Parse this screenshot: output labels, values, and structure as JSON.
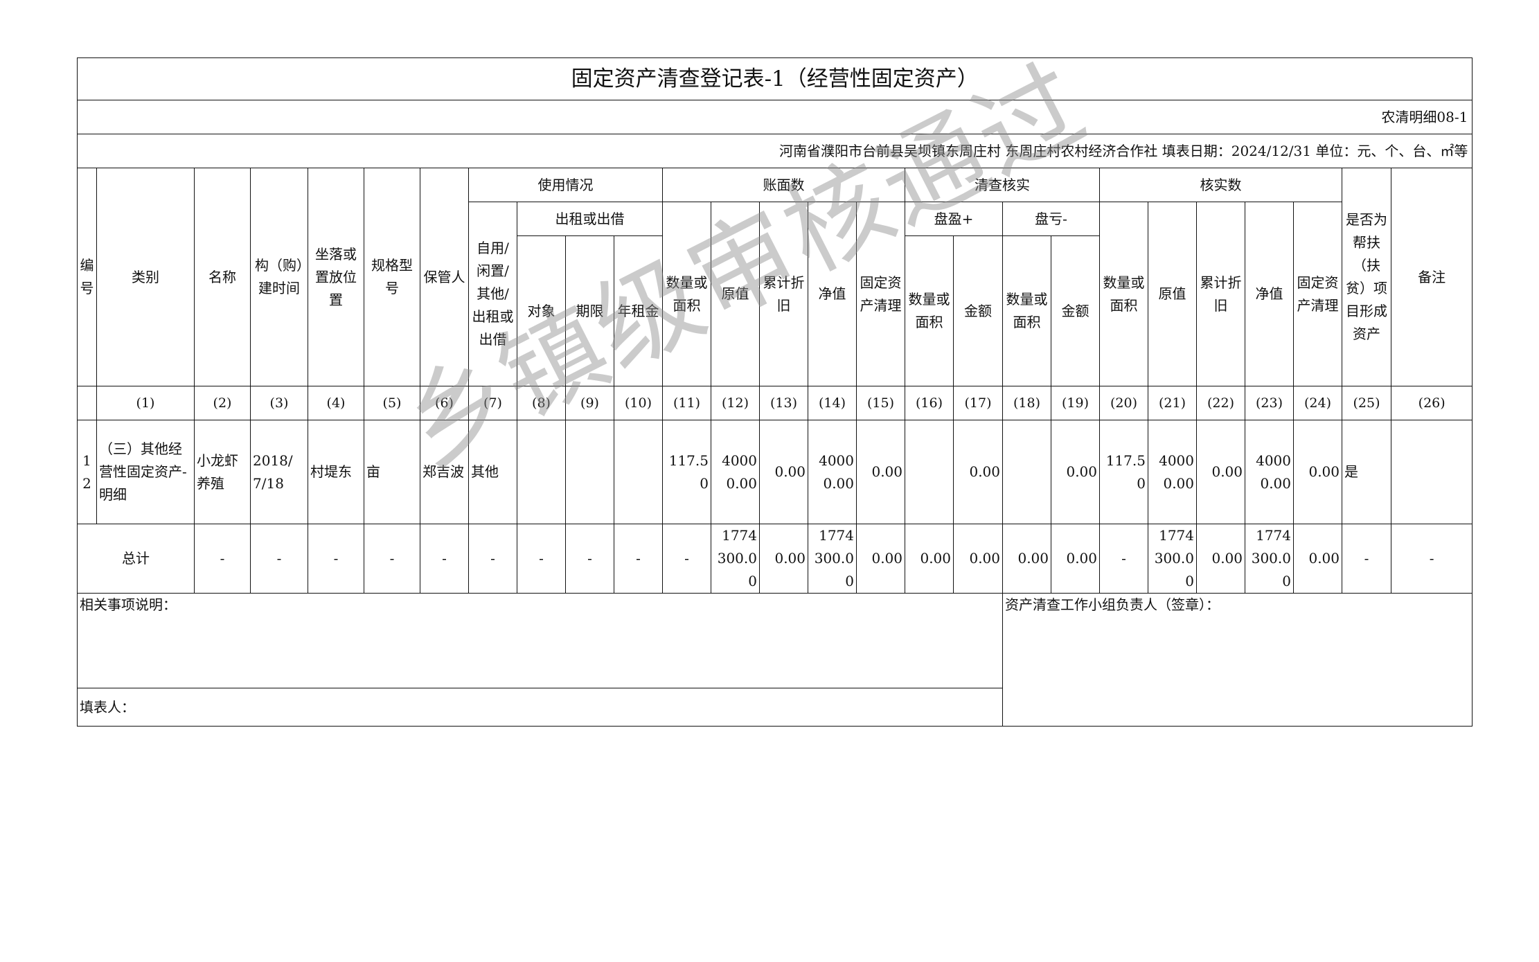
{
  "title": "固定资产清查登记表-1（经营性固定资产）",
  "form_code": "农清明细08-1",
  "info_line": "河南省濮阳市台前县吴坝镇东周庄村  东周庄村农村经济合作社  填表日期：2024/12/31  单位：元、个、台、㎡等",
  "headers": {
    "no": "编号",
    "category": "类别",
    "name": "名称",
    "build_time": "构（购）建时间",
    "location": "坐落或置放位置",
    "spec": "规格型号",
    "keeper": "保管人",
    "usage": "使用情况",
    "usage_status": "自用/闲置/其他/出租或出借",
    "lease": "出租或出借",
    "lease_target": "对象",
    "lease_term": "期限",
    "annual_rent": "年租金",
    "book": "账面数",
    "qty_area": "数量或面积",
    "original_value": "原值",
    "accum_depr": "累计折旧",
    "net_value": "净值",
    "fa_clearing": "固定资产清理",
    "verify": "清查核实",
    "surplus": "盘盈+",
    "loss": "盘亏-",
    "amount": "金额",
    "verified": "核实数",
    "poverty": "是否为帮扶（扶贫）项目形成资产",
    "remarks": "备注"
  },
  "column_numbers": [
    "",
    "(1)",
    "(2)",
    "(3)",
    "(4)",
    "(5)",
    "(6)",
    "(7)",
    "(8)",
    "(9)",
    "(10)",
    "(11)",
    "(12)",
    "(13)",
    "(14)",
    "(15)",
    "(16)",
    "(17)",
    "(18)",
    "(19)",
    "(20)",
    "(21)",
    "(22)",
    "(23)",
    "(24)",
    "(25)",
    "(26)"
  ],
  "rows": [
    [
      "12",
      "（三）其他经营性固定资产-明细",
      "小龙虾养殖",
      "2018/7/18",
      "村堤东",
      "亩",
      "郑吉波",
      "其他",
      "",
      "",
      "",
      "117.50",
      "40000.00",
      "0.00",
      "40000.00",
      "0.00",
      "",
      "0.00",
      "",
      "0.00",
      "117.50",
      "40000.00",
      "0.00",
      "40000.00",
      "0.00",
      "是",
      ""
    ]
  ],
  "total": [
    "总计",
    "-",
    "-",
    "-",
    "-",
    "-",
    "-",
    "-",
    "-",
    "-",
    "-",
    "1774300.00",
    "0.00",
    "1774300.00",
    "0.00",
    "0.00",
    "0.00",
    "0.00",
    "0.00",
    "-",
    "1774300.00",
    "0.00",
    "1774300.00",
    "0.00",
    "-",
    "-"
  ],
  "footer": {
    "notes_label": "相关事项说明：",
    "preparer_label": "填表人：",
    "leader_label": "资产清查工作小组负责人（签章）："
  },
  "watermark": "乡镇级审核通过"
}
